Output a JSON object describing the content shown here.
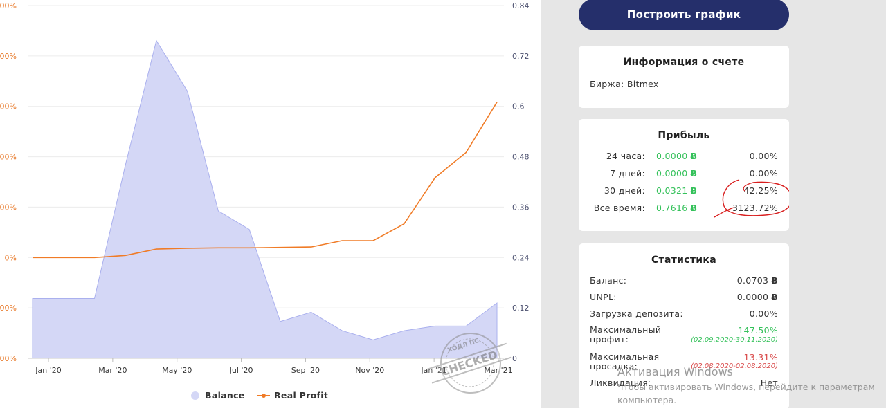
{
  "chart": {
    "left_ticks": [
      "00%",
      "00%",
      "00%",
      "00%",
      "00%",
      "0%",
      "00%",
      "00%"
    ],
    "right_ticks": [
      "0.84",
      "0.72",
      "0.6",
      "0.48",
      "0.36",
      "0.24",
      "0.12",
      "0"
    ],
    "x_ticks": [
      "Jan '20",
      "Mar '20",
      "May '20",
      "Jul '20",
      "Sep '20",
      "Nov '20",
      "Jan '21",
      "Mar '21"
    ],
    "legend": {
      "balance": "Balance",
      "real_profit": "Real Profit"
    },
    "colors": {
      "balance_fill": "#d4d7f6",
      "balance_line": "#aab0ee",
      "profit_line": "#f07b26",
      "left_axis": "#e87b2c",
      "right_axis": "#4a4f6e"
    }
  },
  "chart_data": {
    "type": "area",
    "x": [
      "Dec '19",
      "Jan '20",
      "Feb '20",
      "Mar '20",
      "Apr '20",
      "May '20",
      "Jun '20",
      "Jul '20",
      "Aug '20",
      "Sep '20",
      "Oct '20",
      "Nov '20",
      "Dec '20",
      "Jan '21",
      "Feb '21",
      "Mar '21"
    ],
    "series": [
      {
        "name": "Balance",
        "axis": "left",
        "values": [
          1.3,
          1.3,
          1.3,
          4.2,
          6.9,
          5.8,
          3.2,
          2.8,
          0.8,
          1.0,
          0.6,
          0.4,
          0.6,
          0.7,
          0.7,
          1.2
        ]
      },
      {
        "name": "Real Profit",
        "axis": "right",
        "values": [
          0.24,
          0.24,
          0.24,
          0.245,
          0.26,
          0.262,
          0.263,
          0.263,
          0.264,
          0.265,
          0.28,
          0.28,
          0.32,
          0.43,
          0.49,
          0.61
        ]
      }
    ],
    "right_axis_ticks": [
      0,
      0.12,
      0.24,
      0.36,
      0.48,
      0.6,
      0.72,
      0.84
    ],
    "ylim_right": [
      0,
      0.84
    ],
    "x_tick_labels": [
      "Jan '20",
      "Mar '20",
      "May '20",
      "Jul '20",
      "Sep '20",
      "Nov '20",
      "Jan '21",
      "Mar '21"
    ],
    "legend_position": "bottom",
    "grid": true
  },
  "button": {
    "label": "Построить график"
  },
  "account": {
    "title": "Информация о счете",
    "exchange": "Биржа: Bitmex"
  },
  "profit": {
    "title": "Прибыль",
    "rows": [
      {
        "label": "24 часа:",
        "btc": "0.0000",
        "pct": "0.00%"
      },
      {
        "label": "7 дней:",
        "btc": "0.0000",
        "pct": "0.00%"
      },
      {
        "label": "30 дней:",
        "btc": "0.0321",
        "pct": "42.25%"
      },
      {
        "label": "Все время:",
        "btc": "0.7616",
        "pct": "3123.72%"
      }
    ],
    "btc_symbol": "Ƀ"
  },
  "stats": {
    "title": "Статистика",
    "balance_label": "Баланс:",
    "balance_value": "0.0703",
    "unpl_label": "UNPL:",
    "unpl_value": "0.0000",
    "deposit_label": "Загрузка депозита:",
    "deposit_value": "0.00%",
    "max_profit_label_1": "Максимальный",
    "max_profit_label_2": "профит:",
    "max_profit_value": "147.50%",
    "max_profit_dates": "(02.09.2020-30.11.2020)",
    "max_drawdown_label_1": "Максимальная",
    "max_drawdown_label_2": "просадка:",
    "max_drawdown_value": "-13.31%",
    "max_drawdown_dates": "(02.08.2020-02.08.2020)",
    "liquidation_label": "Ликвидация:",
    "liquidation_value": "Нет",
    "btc_symbol": "Ƀ"
  },
  "windows_activation": {
    "title": "Активация Windows",
    "line1": "Чтобы активировать Windows, перейдите к параметрам",
    "line2": "компьютера."
  },
  "stamp": {
    "top": "ХОДЛ ПС",
    "middle": "CHECKED"
  }
}
